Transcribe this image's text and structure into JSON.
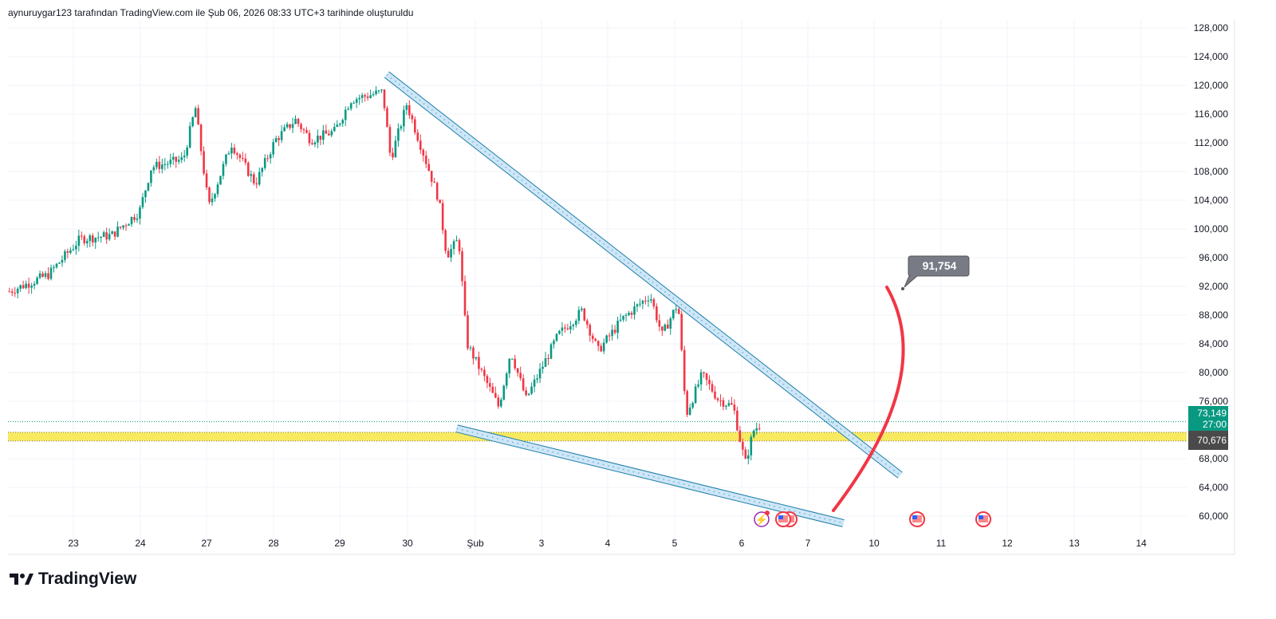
{
  "header": "aynuruygar123 tarafından TradingView.com ile Şub 06, 2026 08:33 UTC+3 tarihinde oluşturuldu",
  "brand": "TradingView",
  "chart_data": {
    "type": "candlestick",
    "yticks": [
      "128,000",
      "124,000",
      "120,000",
      "116,000",
      "112,000",
      "108,000",
      "104,000",
      "100,000",
      "96,000",
      "92,000",
      "88,000",
      "84,000",
      "80,000",
      "76,000",
      "68,000",
      "64,000",
      "60,000"
    ],
    "ytick_values": [
      128000,
      124000,
      120000,
      116000,
      112000,
      108000,
      104000,
      100000,
      96000,
      92000,
      88000,
      84000,
      80000,
      76000,
      68000,
      64000,
      60000
    ],
    "ylim": [
      57000,
      130000
    ],
    "xticks": [
      "23",
      "24",
      "27",
      "28",
      "29",
      "30",
      "Şub",
      "3",
      "4",
      "5",
      "6",
      "7",
      "10",
      "11",
      "12",
      "13",
      "14"
    ],
    "price_path": [
      [
        -0.96,
        91300
      ],
      [
        -0.38,
        93600
      ],
      [
        0.1,
        98600
      ],
      [
        0.57,
        99100
      ],
      [
        0.99,
        102400
      ],
      [
        1.17,
        108600
      ],
      [
        1.65,
        109700
      ],
      [
        1.83,
        116900
      ],
      [
        2.03,
        103000
      ],
      [
        2.37,
        111900
      ],
      [
        2.73,
        106300
      ],
      [
        3.03,
        112400
      ],
      [
        3.33,
        115200
      ],
      [
        3.56,
        112400
      ],
      [
        3.92,
        113600
      ],
      [
        4.16,
        118000
      ],
      [
        4.64,
        119100
      ],
      [
        4.76,
        109700
      ],
      [
        5.0,
        117400
      ],
      [
        5.24,
        110800
      ],
      [
        5.48,
        104100
      ],
      [
        5.6,
        96300
      ],
      [
        5.78,
        98600
      ],
      [
        5.9,
        84100
      ],
      [
        6.14,
        79700
      ],
      [
        6.38,
        75200
      ],
      [
        6.56,
        83000
      ],
      [
        6.79,
        76300
      ],
      [
        7.27,
        85200
      ],
      [
        7.63,
        88600
      ],
      [
        7.87,
        83000
      ],
      [
        8.23,
        87400
      ],
      [
        8.65,
        90800
      ],
      [
        8.83,
        85200
      ],
      [
        9.07,
        89700
      ],
      [
        9.19,
        74100
      ],
      [
        9.43,
        79700
      ],
      [
        9.67,
        76300
      ],
      [
        9.9,
        75200
      ],
      [
        10.02,
        69700
      ],
      [
        10.08,
        67400
      ],
      [
        10.2,
        71900
      ],
      [
        10.32,
        73000
      ]
    ],
    "last_price": {
      "value": 73149,
      "label": "73,149",
      "countdown": "27:00"
    },
    "support": {
      "value": 70676,
      "label": "70,676"
    },
    "target": {
      "value": 91754,
      "label": "91,754"
    },
    "wedge_upper": [
      [
        4.7,
        121500
      ],
      [
        12.4,
        65700
      ]
    ],
    "wedge_lower": [
      [
        5.75,
        72200
      ],
      [
        11.55,
        59000
      ]
    ],
    "colors": {
      "up": "#089981",
      "down": "#f23645",
      "wedge": "#5bb5d8",
      "support": "#f5e53a",
      "arrow": "#f23645",
      "last": "#089981"
    }
  }
}
